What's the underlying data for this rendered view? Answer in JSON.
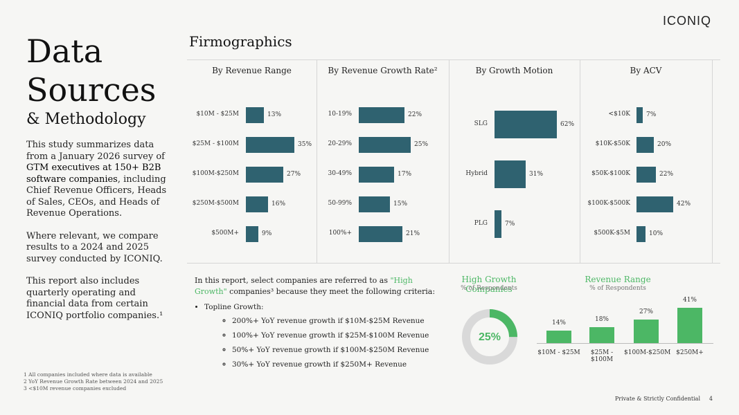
{
  "brand": "ICONIQ",
  "title_line1": "Data",
  "title_line2": "Sources",
  "title_sub": "& Methodology",
  "intro": {
    "p1_a": "This study summarizes data from a January 2026 survey of ",
    "p1_b": "GTM executives at 150+ B2B software companies",
    "p1_c": ", including Chief Revenue Officers, Heads of Sales, CEOs, and Heads of Revenue Operations.",
    "p2": "Where relevant, we compare results to a 2024 and 2025 survey conducted by ICONIQ.",
    "p3": "This report also includes quarterly operating and financial data from certain ICONIQ portfolio companies.¹"
  },
  "footnotes": [
    "1 All companies included where data is available",
    "2 YoY Revenue Growth Rate between 2024 and 2025",
    "3 <$10M revenue companies excluded"
  ],
  "footer": "Private & Strictly Confidential",
  "page_number": "4",
  "section_title": "Firmographics",
  "criteria": {
    "intro_a": "In this report, select companies are referred to as ",
    "intro_hl": "\"High Growth\"",
    "intro_b": " companies³ because they meet the following criteria:",
    "topline": "Topline Growth:",
    "items": [
      "200%+ YoY revenue growth if $10M-$25M Revenue",
      "100%+ YoY revenue growth if $25M-$100M Revenue",
      "50%+ YoY revenue growth if $100M-$250M Revenue",
      "30%+ YoY revenue growth if $250M+ Revenue"
    ]
  },
  "chart_data": [
    {
      "type": "bar",
      "orientation": "horizontal",
      "title": "By Revenue Range",
      "categories": [
        "$10M - $25M",
        "$25M - $100M",
        "$100M-$250M",
        "$250M-$500M",
        "$500M+"
      ],
      "values": [
        13,
        35,
        27,
        16,
        9
      ],
      "unit": "%",
      "color": "#2f6270"
    },
    {
      "type": "bar",
      "orientation": "horizontal",
      "title": "By Revenue Growth Rate²",
      "categories": [
        "10-19%",
        "20-29%",
        "30-49%",
        "50-99%",
        "100%+"
      ],
      "values": [
        22,
        25,
        17,
        15,
        21
      ],
      "unit": "%",
      "color": "#2f6270"
    },
    {
      "type": "bar",
      "orientation": "horizontal",
      "title": "By Growth Motion",
      "categories": [
        "SLG",
        "Hybrid",
        "PLG"
      ],
      "values": [
        62,
        31,
        7
      ],
      "unit": "%",
      "color": "#2f6270"
    },
    {
      "type": "bar",
      "orientation": "horizontal",
      "title": "By ACV",
      "categories": [
        "<$10K",
        "$10K-$50K",
        "$50K-$100K",
        "$100K-$500K",
        "$500K-$5M"
      ],
      "values": [
        7,
        20,
        22,
        42,
        10
      ],
      "unit": "%",
      "color": "#2f6270"
    },
    {
      "type": "pie",
      "subtype": "donut",
      "title": "High Growth Companies",
      "subtitle": "% of Respondents",
      "value": 25,
      "label": "25%",
      "colors": [
        "#4cb765",
        "#d9d9d9"
      ]
    },
    {
      "type": "bar",
      "orientation": "vertical",
      "title": "Revenue Range",
      "subtitle": "% of Respondents",
      "categories": [
        "$10M - $25M",
        "$25M - $100M",
        "$100M-$250M",
        "$250M+"
      ],
      "values": [
        14,
        18,
        27,
        41
      ],
      "unit": "%",
      "color": "#4cb765"
    }
  ]
}
